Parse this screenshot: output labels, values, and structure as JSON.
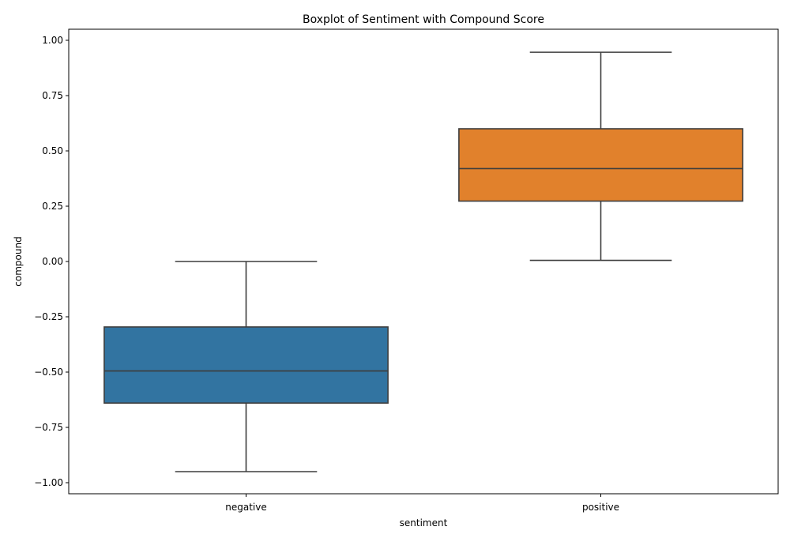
{
  "chart_data": {
    "type": "boxplot",
    "title": "Boxplot of Sentiment with Compound Score",
    "xlabel": "sentiment",
    "ylabel": "compound",
    "ylim": [
      -1.05,
      1.05
    ],
    "yticks": [
      -1.0,
      -0.75,
      -0.5,
      -0.25,
      0.0,
      0.25,
      0.5,
      0.75,
      1.0
    ],
    "ytick_labels": [
      "−1.00",
      "−0.75",
      "−0.50",
      "−0.25",
      "0.00",
      "0.25",
      "0.50",
      "0.75",
      "1.00"
    ],
    "categories": [
      "negative",
      "positive"
    ],
    "boxes": [
      {
        "name": "negative",
        "whisker_low": -0.95,
        "q1": -0.64,
        "median": -0.495,
        "q3": -0.296,
        "whisker_high": 0.0,
        "color": "#3274a1"
      },
      {
        "name": "positive",
        "whisker_low": 0.005,
        "q1": 0.273,
        "median": 0.42,
        "q3": 0.6,
        "whisker_high": 0.946,
        "color": "#e1812c"
      }
    ],
    "grid": false,
    "legend": "none"
  }
}
